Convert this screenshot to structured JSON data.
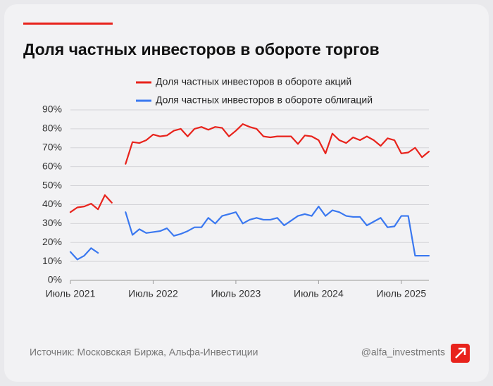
{
  "chart_data": {
    "type": "line",
    "title": "Доля частных инвесторов в обороте торгов",
    "categories": [
      "Июль 2021",
      null,
      null,
      null,
      null,
      null,
      null,
      null,
      null,
      null,
      null,
      null,
      "Июль 2022",
      null,
      null,
      null,
      null,
      null,
      null,
      null,
      null,
      null,
      null,
      null,
      "Июль 2023",
      null,
      null,
      null,
      null,
      null,
      null,
      null,
      null,
      null,
      null,
      null,
      "Июль 2024",
      null,
      null,
      null,
      null,
      null,
      null,
      null,
      null,
      null,
      null,
      null,
      "Июль 2025",
      null,
      null,
      null,
      null
    ],
    "series": [
      {
        "name": "Доля частных инвесторов в обороте акций",
        "color": "#e8231c",
        "values": [
          36,
          38.5,
          39,
          40.5,
          37.5,
          45,
          41,
          null,
          61.5,
          73,
          72.5,
          74,
          77,
          76,
          76.5,
          79,
          80,
          76,
          80,
          81,
          79.5,
          81,
          80.5,
          76,
          79,
          82.5,
          81,
          80,
          76,
          75.5,
          76,
          76,
          76,
          72,
          76.5,
          76,
          74,
          67,
          77.5,
          74,
          72.5,
          75.5,
          74,
          76,
          74,
          71,
          75,
          74,
          67,
          67.5,
          70,
          65,
          68
        ]
      },
      {
        "name": "Доля частных инвесторов в обороте облигаций",
        "color": "#3a78f0",
        "values": [
          15,
          11,
          13,
          17,
          14.5,
          null,
          null,
          null,
          36,
          24,
          27,
          25,
          25.5,
          26,
          27.5,
          23.5,
          24.5,
          26,
          28,
          28,
          33,
          30,
          34,
          35,
          36,
          30,
          32,
          33,
          32,
          32,
          33,
          29,
          31.5,
          34,
          35,
          34,
          39,
          34,
          37,
          36,
          34,
          33.5,
          33.5,
          29,
          31,
          33,
          28,
          28.5,
          34,
          34,
          13,
          13,
          13
        ]
      }
    ],
    "ylim": [
      0,
      90
    ],
    "yticks": [
      {
        "value": 0,
        "label": "0%"
      },
      {
        "value": 10,
        "label": "10%"
      },
      {
        "value": 20,
        "label": "20%"
      },
      {
        "value": 30,
        "label": "30%"
      },
      {
        "value": 40,
        "label": "40%"
      },
      {
        "value": 50,
        "label": "50%"
      },
      {
        "value": 60,
        "label": "60%"
      },
      {
        "value": 70,
        "label": "70%"
      },
      {
        "value": 80,
        "label": "80%"
      },
      {
        "value": 90,
        "label": "90%"
      }
    ],
    "grid": true,
    "legend": "top",
    "source": "Источник: Московская Биржа, Альфа-Инвестиции",
    "credit": "@alfa_investments"
  }
}
